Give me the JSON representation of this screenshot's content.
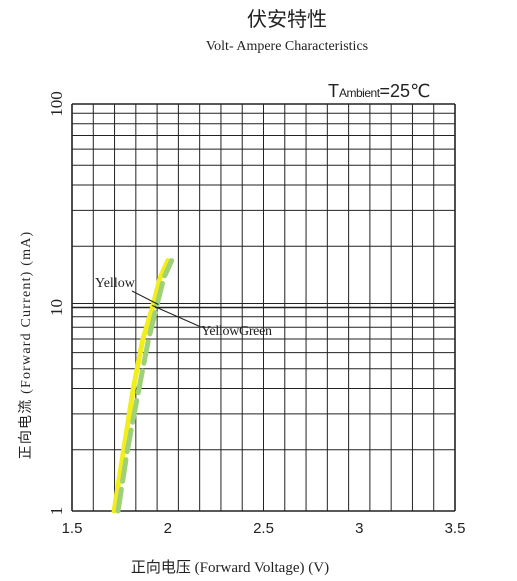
{
  "chart_data": {
    "type": "line",
    "title": "伏安特性",
    "subtitle": "Volt- Ampere  Characteristics",
    "annotation": {
      "prefix": "T",
      "subscript": "Ambient",
      "value": "=25℃"
    },
    "xlabel": "正向电压 (Forward Voltage) (V)",
    "ylabel": "正向电流 (Forward  Current) (mA)",
    "x_scale": "linear",
    "y_scale": "log",
    "xlim": [
      1.5,
      3.5
    ],
    "ylim": [
      1,
      100
    ],
    "x_ticks": [
      "1.5",
      "2",
      "2.5",
      "3",
      "3.5"
    ],
    "y_ticks": [
      "1",
      "10",
      "100"
    ],
    "grid": true,
    "series": [
      {
        "name": "Yellow",
        "color": "#f2ee1a",
        "style": "solid",
        "points": [
          [
            1.72,
            1.0
          ],
          [
            1.77,
            2.0
          ],
          [
            1.82,
            4.0
          ],
          [
            1.87,
            7.0
          ],
          [
            1.92,
            10.0
          ],
          [
            1.96,
            14.0
          ],
          [
            2.0,
            17.0
          ]
        ]
      },
      {
        "name": "YellowGreen",
        "color": "#9fd07a",
        "style": "dashed",
        "points": [
          [
            1.74,
            1.0
          ],
          [
            1.79,
            2.0
          ],
          [
            1.85,
            4.0
          ],
          [
            1.9,
            7.0
          ],
          [
            1.94,
            10.0
          ],
          [
            1.98,
            14.0
          ],
          [
            2.02,
            17.0
          ]
        ]
      }
    ],
    "labels": [
      {
        "text": "Yellow",
        "series": 0
      },
      {
        "text": "YellowGreen",
        "series": 1
      }
    ]
  }
}
